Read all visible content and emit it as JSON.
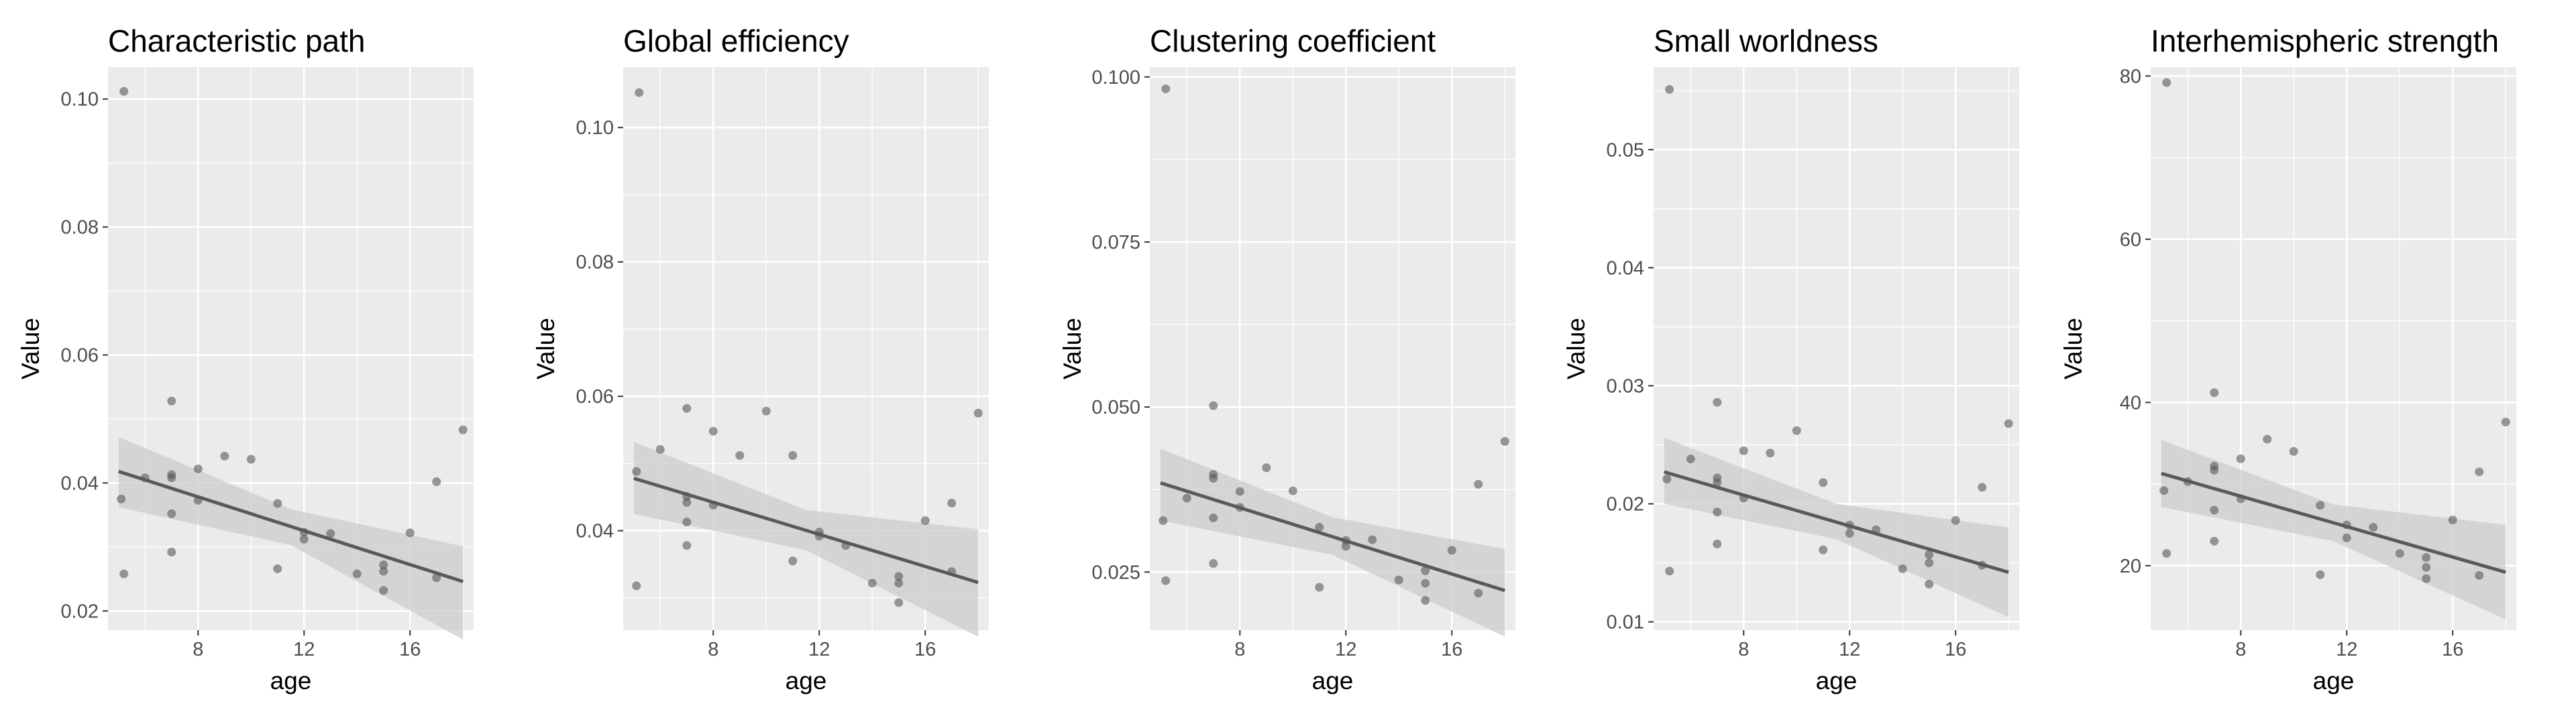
{
  "colors": {
    "panel_background": "#ebebeb",
    "gridline": "#ffffff",
    "point": "#595959",
    "line": "#5a5a5a",
    "band": "#cccccc",
    "tick_text": "#4d4d4d",
    "label_text": "#000000"
  },
  "chart_data": [
    {
      "type": "scatter",
      "title": "Characteristic path",
      "xlabel": "age",
      "ylabel": "Value",
      "xlim": [
        4.6,
        18.4
      ],
      "ylim": [
        0.017,
        0.105
      ],
      "xticks": [
        8,
        12,
        16
      ],
      "xtick_labels": [
        "8",
        "12",
        "16"
      ],
      "yticks": [
        0.02,
        0.04,
        0.06,
        0.08,
        0.1
      ],
      "ytick_labels": [
        "0.02",
        "0.04",
        "0.06",
        "0.08",
        "0.10"
      ],
      "grid": true,
      "legend": "none",
      "points": [
        {
          "x": 5.2,
          "y": 0.1012
        },
        {
          "x": 5.1,
          "y": 0.0375
        },
        {
          "x": 5.2,
          "y": 0.0258
        },
        {
          "x": 6,
          "y": 0.0408
        },
        {
          "x": 7,
          "y": 0.0528
        },
        {
          "x": 7,
          "y": 0.0413
        },
        {
          "x": 7,
          "y": 0.0408
        },
        {
          "x": 7,
          "y": 0.0352
        },
        {
          "x": 7,
          "y": 0.0292
        },
        {
          "x": 8,
          "y": 0.0422
        },
        {
          "x": 8,
          "y": 0.0373
        },
        {
          "x": 9,
          "y": 0.0442
        },
        {
          "x": 10,
          "y": 0.0437
        },
        {
          "x": 11,
          "y": 0.0368
        },
        {
          "x": 11,
          "y": 0.0266
        },
        {
          "x": 12,
          "y": 0.0323
        },
        {
          "x": 12,
          "y": 0.0312
        },
        {
          "x": 13,
          "y": 0.0321
        },
        {
          "x": 14,
          "y": 0.0258
        },
        {
          "x": 15,
          "y": 0.0272
        },
        {
          "x": 15,
          "y": 0.0262
        },
        {
          "x": 15,
          "y": 0.0232
        },
        {
          "x": 16,
          "y": 0.0322
        },
        {
          "x": 17,
          "y": 0.0402
        },
        {
          "x": 17,
          "y": 0.0252
        },
        {
          "x": 18,
          "y": 0.0483
        }
      ],
      "fit": {
        "x": [
          5,
          18
        ],
        "y": [
          0.0418,
          0.0246
        ]
      },
      "confidence_band": {
        "x": [
          5,
          11.5,
          18
        ],
        "lower": [
          0.0362,
          0.0303,
          0.0155
        ],
        "upper": [
          0.0472,
          0.0359,
          0.0301
        ]
      }
    },
    {
      "type": "scatter",
      "title": "Global efficiency",
      "xlabel": "age",
      "ylabel": "Value",
      "xlim": [
        4.6,
        18.4
      ],
      "ylim": [
        0.0252,
        0.109
      ],
      "xticks": [
        8,
        12,
        16
      ],
      "xtick_labels": [
        "8",
        "12",
        "16"
      ],
      "yticks": [
        0.04,
        0.06,
        0.08,
        0.1
      ],
      "ytick_labels": [
        "0.04",
        "0.06",
        "0.08",
        "0.10"
      ],
      "grid": true,
      "legend": "none",
      "points": [
        {
          "x": 5.2,
          "y": 0.1052
        },
        {
          "x": 5.1,
          "y": 0.0488
        },
        {
          "x": 5.1,
          "y": 0.0318
        },
        {
          "x": 6,
          "y": 0.0521
        },
        {
          "x": 7,
          "y": 0.0582
        },
        {
          "x": 7,
          "y": 0.0451
        },
        {
          "x": 7,
          "y": 0.0442
        },
        {
          "x": 7,
          "y": 0.0413
        },
        {
          "x": 7,
          "y": 0.0378
        },
        {
          "x": 8,
          "y": 0.0548
        },
        {
          "x": 8,
          "y": 0.0438
        },
        {
          "x": 9,
          "y": 0.0512
        },
        {
          "x": 10,
          "y": 0.0578
        },
        {
          "x": 11,
          "y": 0.0512
        },
        {
          "x": 11,
          "y": 0.0355
        },
        {
          "x": 12,
          "y": 0.0398
        },
        {
          "x": 12,
          "y": 0.0392
        },
        {
          "x": 13,
          "y": 0.0378
        },
        {
          "x": 14,
          "y": 0.0322
        },
        {
          "x": 15,
          "y": 0.0332
        },
        {
          "x": 15,
          "y": 0.0322
        },
        {
          "x": 15,
          "y": 0.0293
        },
        {
          "x": 16,
          "y": 0.0415
        },
        {
          "x": 17,
          "y": 0.0441
        },
        {
          "x": 17,
          "y": 0.0339
        },
        {
          "x": 18,
          "y": 0.0575
        }
      ],
      "fit": {
        "x": [
          5,
          18
        ],
        "y": [
          0.0478,
          0.0323
        ]
      },
      "confidence_band": {
        "x": [
          5,
          11.5,
          18
        ],
        "lower": [
          0.0425,
          0.0371,
          0.0242
        ],
        "upper": [
          0.0532,
          0.0431,
          0.0402
        ]
      }
    },
    {
      "type": "scatter",
      "title": "Clustering coefficient",
      "xlabel": "age",
      "ylabel": "Value",
      "xlim": [
        4.6,
        18.4
      ],
      "ylim": [
        0.0162,
        0.1015
      ],
      "xticks": [
        8,
        12,
        16
      ],
      "xtick_labels": [
        "8",
        "12",
        "16"
      ],
      "yticks": [
        0.025,
        0.05,
        0.075,
        0.1
      ],
      "ytick_labels": [
        "0.025",
        "0.050",
        "0.075",
        "0.100"
      ],
      "grid": true,
      "legend": "none",
      "points": [
        {
          "x": 5.2,
          "y": 0.0982
        },
        {
          "x": 5.1,
          "y": 0.0328
        },
        {
          "x": 5.2,
          "y": 0.0237
        },
        {
          "x": 6,
          "y": 0.0362
        },
        {
          "x": 7,
          "y": 0.0502
        },
        {
          "x": 7,
          "y": 0.0398
        },
        {
          "x": 7,
          "y": 0.0392
        },
        {
          "x": 7,
          "y": 0.0332
        },
        {
          "x": 7,
          "y": 0.0263
        },
        {
          "x": 8,
          "y": 0.0372
        },
        {
          "x": 8,
          "y": 0.0348
        },
        {
          "x": 9,
          "y": 0.0408
        },
        {
          "x": 10,
          "y": 0.0373
        },
        {
          "x": 11,
          "y": 0.0318
        },
        {
          "x": 11,
          "y": 0.0227
        },
        {
          "x": 12,
          "y": 0.0298
        },
        {
          "x": 12,
          "y": 0.0289
        },
        {
          "x": 13,
          "y": 0.0299
        },
        {
          "x": 14,
          "y": 0.0238
        },
        {
          "x": 15,
          "y": 0.0252
        },
        {
          "x": 15,
          "y": 0.0233
        },
        {
          "x": 15,
          "y": 0.0207
        },
        {
          "x": 16,
          "y": 0.0283
        },
        {
          "x": 17,
          "y": 0.0383
        },
        {
          "x": 17,
          "y": 0.0218
        },
        {
          "x": 18,
          "y": 0.0448
        }
      ],
      "fit": {
        "x": [
          5,
          18
        ],
        "y": [
          0.0385,
          0.0222
        ]
      },
      "confidence_band": {
        "x": [
          5,
          11.5,
          18
        ],
        "lower": [
          0.0328,
          0.0276,
          0.0152
        ],
        "upper": [
          0.0437,
          0.0333,
          0.0285
        ]
      }
    },
    {
      "type": "scatter",
      "title": "Small worldness",
      "xlabel": "age",
      "ylabel": "Value",
      "xlim": [
        4.6,
        18.4
      ],
      "ylim": [
        0.0093,
        0.057
      ],
      "xticks": [
        8,
        12,
        16
      ],
      "xtick_labels": [
        "8",
        "12",
        "16"
      ],
      "yticks": [
        0.01,
        0.02,
        0.03,
        0.04,
        0.05
      ],
      "ytick_labels": [
        "0.01",
        "0.02",
        "0.03",
        "0.04",
        "0.05"
      ],
      "grid": true,
      "legend": "none",
      "points": [
        {
          "x": 5.2,
          "y": 0.0551
        },
        {
          "x": 5.1,
          "y": 0.0221
        },
        {
          "x": 5.2,
          "y": 0.0143
        },
        {
          "x": 6,
          "y": 0.0238
        },
        {
          "x": 7,
          "y": 0.0286
        },
        {
          "x": 7,
          "y": 0.0222
        },
        {
          "x": 7,
          "y": 0.0218
        },
        {
          "x": 7,
          "y": 0.0193
        },
        {
          "x": 7,
          "y": 0.0166
        },
        {
          "x": 8,
          "y": 0.0245
        },
        {
          "x": 8,
          "y": 0.0205
        },
        {
          "x": 9,
          "y": 0.0243
        },
        {
          "x": 10,
          "y": 0.0262
        },
        {
          "x": 11,
          "y": 0.0218
        },
        {
          "x": 11,
          "y": 0.0161
        },
        {
          "x": 12,
          "y": 0.0182
        },
        {
          "x": 12,
          "y": 0.0175
        },
        {
          "x": 13,
          "y": 0.0178
        },
        {
          "x": 14,
          "y": 0.0145
        },
        {
          "x": 15,
          "y": 0.0157
        },
        {
          "x": 15,
          "y": 0.015
        },
        {
          "x": 15,
          "y": 0.0132
        },
        {
          "x": 16,
          "y": 0.0186
        },
        {
          "x": 17,
          "y": 0.0214
        },
        {
          "x": 17,
          "y": 0.0148
        },
        {
          "x": 18,
          "y": 0.0268
        }
      ],
      "fit": {
        "x": [
          5,
          18
        ],
        "y": [
          0.0227,
          0.0142
        ]
      },
      "confidence_band": {
        "x": [
          5,
          11.5,
          18
        ],
        "lower": [
          0.02,
          0.017,
          0.0104
        ],
        "upper": [
          0.0256,
          0.02,
          0.018
        ]
      }
    },
    {
      "type": "scatter",
      "title": "Interhemispheric strength",
      "xlabel": "age",
      "ylabel": "Value",
      "xlim": [
        4.6,
        18.4
      ],
      "ylim": [
        12.1,
        81.1
      ],
      "xticks": [
        8,
        12,
        16
      ],
      "xtick_labels": [
        "8",
        "12",
        "16"
      ],
      "yticks": [
        20,
        40,
        60,
        80
      ],
      "ytick_labels": [
        "20",
        "40",
        "60",
        "80"
      ],
      "grid": true,
      "legend": "none",
      "points": [
        {
          "x": 5.2,
          "y": 79.2
        },
        {
          "x": 5.1,
          "y": 29.2
        },
        {
          "x": 5.2,
          "y": 21.5
        },
        {
          "x": 6,
          "y": 30.3
        },
        {
          "x": 7,
          "y": 41.2
        },
        {
          "x": 7,
          "y": 32.2
        },
        {
          "x": 7,
          "y": 31.7
        },
        {
          "x": 7,
          "y": 26.8
        },
        {
          "x": 7,
          "y": 23.0
        },
        {
          "x": 8,
          "y": 33.1
        },
        {
          "x": 8,
          "y": 28.2
        },
        {
          "x": 9,
          "y": 35.5
        },
        {
          "x": 10,
          "y": 34.0
        },
        {
          "x": 11,
          "y": 27.4
        },
        {
          "x": 11,
          "y": 18.9
        },
        {
          "x": 12,
          "y": 25.0
        },
        {
          "x": 12,
          "y": 23.4
        },
        {
          "x": 13,
          "y": 24.7
        },
        {
          "x": 14,
          "y": 21.5
        },
        {
          "x": 15,
          "y": 21.0
        },
        {
          "x": 15,
          "y": 19.8
        },
        {
          "x": 15,
          "y": 18.4
        },
        {
          "x": 16,
          "y": 25.6
        },
        {
          "x": 17,
          "y": 31.5
        },
        {
          "x": 17,
          "y": 18.8
        },
        {
          "x": 18,
          "y": 37.6
        }
      ],
      "fit": {
        "x": [
          5,
          18
        ],
        "y": [
          31.3,
          19.2
        ]
      },
      "confidence_band": {
        "x": [
          5,
          11.5,
          18
        ],
        "lower": [
          27.2,
          23.0,
          13.4
        ],
        "upper": [
          35.4,
          27.5,
          25.0
        ]
      }
    }
  ]
}
